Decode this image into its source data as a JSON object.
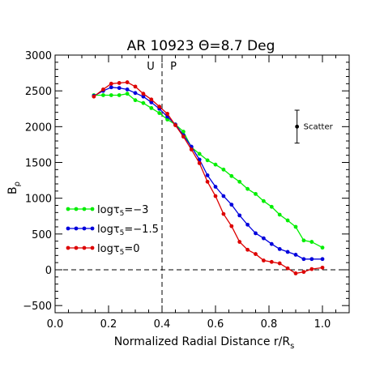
{
  "chart_data": {
    "type": "line",
    "title": "AR 10923 Θ=8.7 Deg",
    "xlabel": "Normalized Radial Distance r/R",
    "xlabel_sub": "s",
    "ylabel": "B",
    "ylabel_sub": "ρ",
    "xlim": [
      0.0,
      1.1
    ],
    "ylim": [
      -600,
      3000
    ],
    "xticks": [
      0.0,
      0.2,
      0.4,
      0.6,
      0.8,
      1.0
    ],
    "xtick_labels": [
      "0.0",
      "0.2",
      "0.4",
      "0.6",
      "0.8",
      "1.0"
    ],
    "yticks": [
      -500,
      0,
      500,
      1000,
      1500,
      2000,
      2500,
      3000
    ],
    "ytick_labels": [
      "−500",
      "0",
      "500",
      "1000",
      "1500",
      "2000",
      "2500",
      "3000"
    ],
    "grid": false,
    "legend_position": "lower-left",
    "reference_lines": {
      "vertical_x": 0.4,
      "horizontal_y": 0,
      "left_region_label": "U",
      "right_region_label": "P"
    },
    "scatter_marker": {
      "x": 0.905,
      "y": 2000,
      "err": 230,
      "label": "Scatter"
    },
    "series": [
      {
        "name": "=−3",
        "name_prefix": "logτ",
        "name_sub": "5",
        "color": "#00ee00",
        "x": [
          0.145,
          0.18,
          0.21,
          0.24,
          0.27,
          0.3,
          0.33,
          0.36,
          0.39,
          0.42,
          0.45,
          0.48,
          0.51,
          0.54,
          0.57,
          0.6,
          0.63,
          0.66,
          0.69,
          0.72,
          0.75,
          0.78,
          0.81,
          0.84,
          0.87,
          0.9,
          0.93,
          0.96,
          1.0
        ],
        "values": [
          2440,
          2440,
          2440,
          2440,
          2460,
          2370,
          2330,
          2260,
          2190,
          2100,
          2030,
          1930,
          1710,
          1620,
          1530,
          1470,
          1400,
          1310,
          1230,
          1130,
          1060,
          960,
          880,
          770,
          690,
          600,
          410,
          390,
          310
        ]
      },
      {
        "name": "=−1.5",
        "name_prefix": "logτ",
        "name_sub": "5",
        "color": "#0000dd",
        "x": [
          0.145,
          0.18,
          0.21,
          0.24,
          0.27,
          0.3,
          0.33,
          0.36,
          0.39,
          0.42,
          0.45,
          0.48,
          0.51,
          0.54,
          0.57,
          0.6,
          0.63,
          0.66,
          0.69,
          0.72,
          0.75,
          0.78,
          0.81,
          0.84,
          0.87,
          0.9,
          0.93,
          0.96,
          1.0
        ],
        "values": [
          2430,
          2500,
          2550,
          2540,
          2520,
          2470,
          2420,
          2340,
          2250,
          2140,
          2030,
          1880,
          1720,
          1540,
          1320,
          1160,
          1030,
          910,
          760,
          630,
          510,
          440,
          360,
          290,
          250,
          210,
          150,
          150,
          150
        ]
      },
      {
        "name": "=0",
        "name_prefix": "logτ",
        "name_sub": "5",
        "color": "#dd0000",
        "x": [
          0.145,
          0.18,
          0.21,
          0.24,
          0.27,
          0.3,
          0.33,
          0.36,
          0.39,
          0.42,
          0.45,
          0.48,
          0.51,
          0.54,
          0.57,
          0.6,
          0.63,
          0.66,
          0.69,
          0.72,
          0.75,
          0.78,
          0.81,
          0.84,
          0.87,
          0.9,
          0.93,
          0.96,
          1.0
        ],
        "values": [
          2420,
          2520,
          2600,
          2610,
          2620,
          2560,
          2460,
          2380,
          2280,
          2180,
          2020,
          1860,
          1680,
          1490,
          1230,
          1030,
          780,
          610,
          390,
          280,
          220,
          130,
          110,
          90,
          20,
          -50,
          -30,
          10,
          30
        ]
      }
    ]
  }
}
